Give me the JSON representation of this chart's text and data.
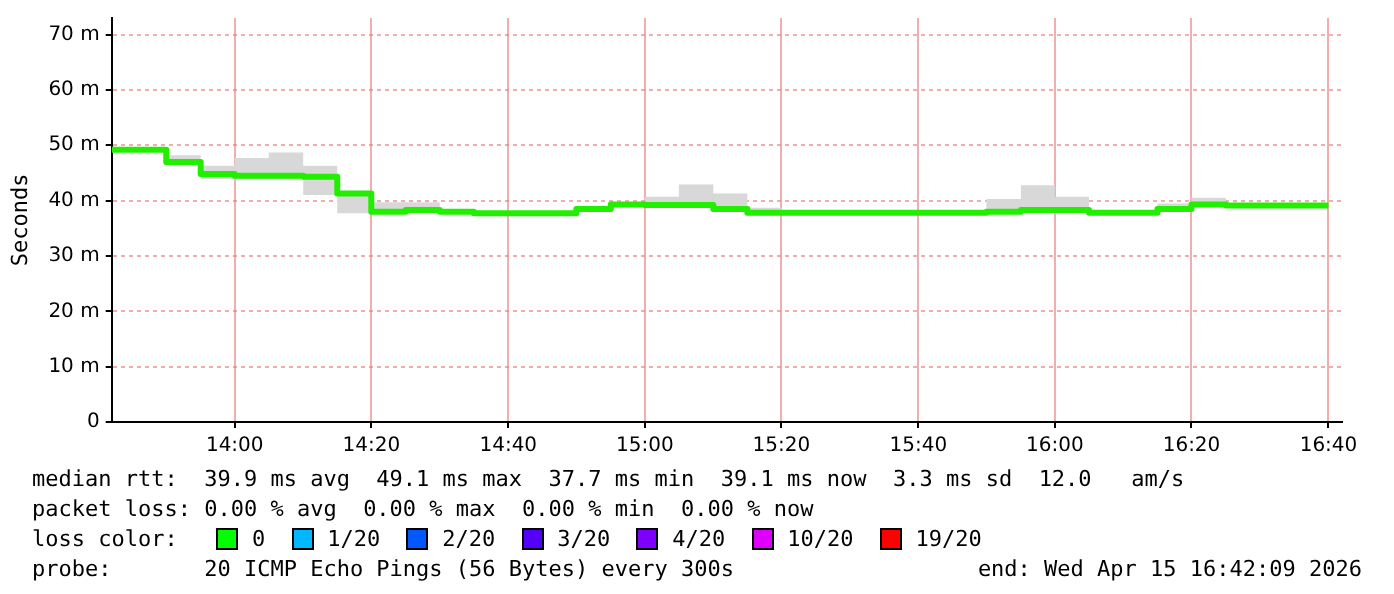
{
  "chart_data": {
    "type": "step",
    "ylabel": "Seconds",
    "x": [
      13.7,
      13.833,
      13.917,
      14.0,
      14.083,
      14.167,
      14.25,
      14.333,
      14.417,
      14.5,
      14.583,
      14.833,
      14.917,
      15.0,
      15.083,
      15.167,
      15.25,
      15.333,
      15.833,
      15.917,
      16.0,
      16.083,
      16.25,
      16.333,
      16.417,
      16.667
    ],
    "series": [
      {
        "color": "#22ee00",
        "values": [
          49.2,
          47.0,
          44.8,
          44.5,
          44.5,
          44.3,
          41.3,
          38.0,
          38.3,
          38.0,
          37.7,
          38.5,
          39.3,
          39.2,
          39.2,
          38.5,
          37.8,
          37.8,
          38.0,
          38.3,
          38.3,
          37.8,
          38.5,
          39.3,
          39.1,
          39.1
        ],
        "lower": [
          48.9,
          46.8,
          43.9,
          44.0,
          44.0,
          41.0,
          37.7,
          37.6,
          38.0,
          37.6,
          37.5,
          38.3,
          39.0,
          38.8,
          38.8,
          38.2,
          37.5,
          37.5,
          37.7,
          37.9,
          37.9,
          37.5,
          38.2,
          39.0,
          38.8,
          38.8
        ],
        "upper": [
          49.4,
          48.2,
          46.3,
          47.7,
          48.7,
          46.3,
          41.6,
          39.7,
          39.7,
          38.4,
          37.9,
          39.0,
          39.7,
          40.7,
          42.9,
          41.3,
          38.7,
          38.0,
          40.3,
          42.8,
          40.7,
          38.0,
          39.5,
          40.5,
          39.4,
          39.4
        ]
      }
    ],
    "xlim": [
      13.7,
      16.7
    ],
    "xticks": [
      {
        "value": 14.0,
        "label": "14:00"
      },
      {
        "value": 14.333,
        "label": "14:20"
      },
      {
        "value": 14.667,
        "label": "14:40"
      },
      {
        "value": 15.0,
        "label": "15:00"
      },
      {
        "value": 15.333,
        "label": "15:20"
      },
      {
        "value": 15.667,
        "label": "15:40"
      },
      {
        "value": 16.0,
        "label": "16:00"
      },
      {
        "value": 16.333,
        "label": "16:20"
      },
      {
        "value": 16.667,
        "label": "16:40"
      }
    ],
    "ylim": [
      0,
      73
    ],
    "yticks": [
      0,
      {
        "value": 10,
        "label": "10 m"
      },
      {
        "value": 20,
        "label": "20 m"
      },
      {
        "value": 30,
        "label": "30 m"
      },
      {
        "value": 40,
        "label": "40 m"
      },
      {
        "value": 50,
        "label": "50 m"
      },
      {
        "value": 60,
        "label": "60 m"
      },
      {
        "value": 70,
        "label": "70 m"
      }
    ],
    "grid": true,
    "legend": false,
    "annotations": [
      "median rtt:  39.9 ms avg  49.1 ms max  37.7 ms min  39.1 ms now  3.3 ms sd  12.0   am/s",
      "packet loss: 0.00 % avg  0.00 % max  0.00 % min  0.00 % now",
      "loss color:",
      "0",
      "1/20",
      "2/20",
      "3/20",
      "4/20",
      "10/20",
      "19/20",
      "probe:       20 ICMP Echo Pings (56 Bytes) every 300s",
      "end: Wed Apr 15 16:42:09 2026"
    ]
  }
}
